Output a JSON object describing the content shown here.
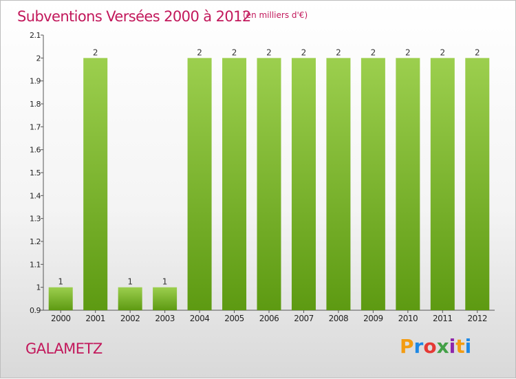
{
  "header": {
    "title": "Subventions Versées 2000 à 2012",
    "unit": "(en milliers d'€)"
  },
  "place": "GALAMETZ",
  "brand": {
    "letters": [
      "P",
      "r",
      "o",
      "x",
      "i",
      "t",
      "i"
    ],
    "colors": [
      "#f39c12",
      "#1e88e5",
      "#e53935",
      "#43a047",
      "#8e24aa",
      "#f39c12",
      "#1e88e5"
    ]
  },
  "colors": {
    "title": "#c2185b",
    "bar_top": "#9ccf4e",
    "bar_bottom": "#5d9a12",
    "axis": "#555555"
  },
  "chart_data": {
    "type": "bar",
    "title": "Subventions Versées 2000 à 2012",
    "subtitle": "(en milliers d'€)",
    "xlabel": "",
    "ylabel": "",
    "categories": [
      "2000",
      "2001",
      "2002",
      "2003",
      "2004",
      "2005",
      "2006",
      "2007",
      "2008",
      "2009",
      "2010",
      "2011",
      "2012"
    ],
    "values": [
      1,
      2,
      1,
      1,
      2,
      2,
      2,
      2,
      2,
      2,
      2,
      2,
      2
    ],
    "value_labels": [
      "1",
      "2",
      "1",
      "1",
      "2",
      "2",
      "2",
      "2",
      "2",
      "2",
      "2",
      "2",
      "2"
    ],
    "ylim": [
      0.9,
      2.1
    ],
    "yticks": [
      0.9,
      1,
      1.1,
      1.2,
      1.3,
      1.4,
      1.5,
      1.6,
      1.7,
      1.8,
      1.9,
      2,
      2.1
    ],
    "ytick_labels": [
      "0.9",
      "1",
      "1.1",
      "1.2",
      "1.3",
      "1.4",
      "1.5",
      "1.6",
      "1.7",
      "1.8",
      "1.9",
      "2",
      "2.1"
    ],
    "grid": false,
    "legend": "none"
  }
}
